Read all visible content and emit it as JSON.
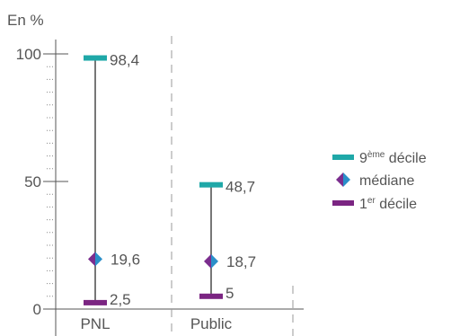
{
  "chart_data": {
    "type": "range",
    "unit_label": "En %",
    "ylim": [
      0,
      100
    ],
    "y_ticks": [
      {
        "value": 0,
        "label": "0"
      },
      {
        "value": 50,
        "label": "50"
      },
      {
        "value": 100,
        "label": "100"
      }
    ],
    "categories": [
      "PNL",
      "Public"
    ],
    "series": [
      {
        "key": "d9",
        "name_main": "9",
        "name_sup": "ème",
        "name_rest": " décile",
        "values": [
          98.4,
          48.7
        ],
        "labels": [
          "98,4",
          "48,7"
        ]
      },
      {
        "key": "median",
        "name_main": "médiane",
        "name_sup": "",
        "name_rest": "",
        "values": [
          19.6,
          18.7
        ],
        "labels": [
          "19,6",
          "18,7"
        ]
      },
      {
        "key": "d1",
        "name_main": "1",
        "name_sup": "er",
        "name_rest": " décile",
        "values": [
          2.5,
          5
        ],
        "labels": [
          "2,5",
          "5"
        ]
      }
    ],
    "legend_position": "right",
    "colors": {
      "d9": "#1fa8a8",
      "median_left": "#7b2d8e",
      "median_right": "#2a8fc9",
      "d1": "#7b2582",
      "range_line": "#777777",
      "axis": "#555555",
      "text": "#555555"
    }
  }
}
